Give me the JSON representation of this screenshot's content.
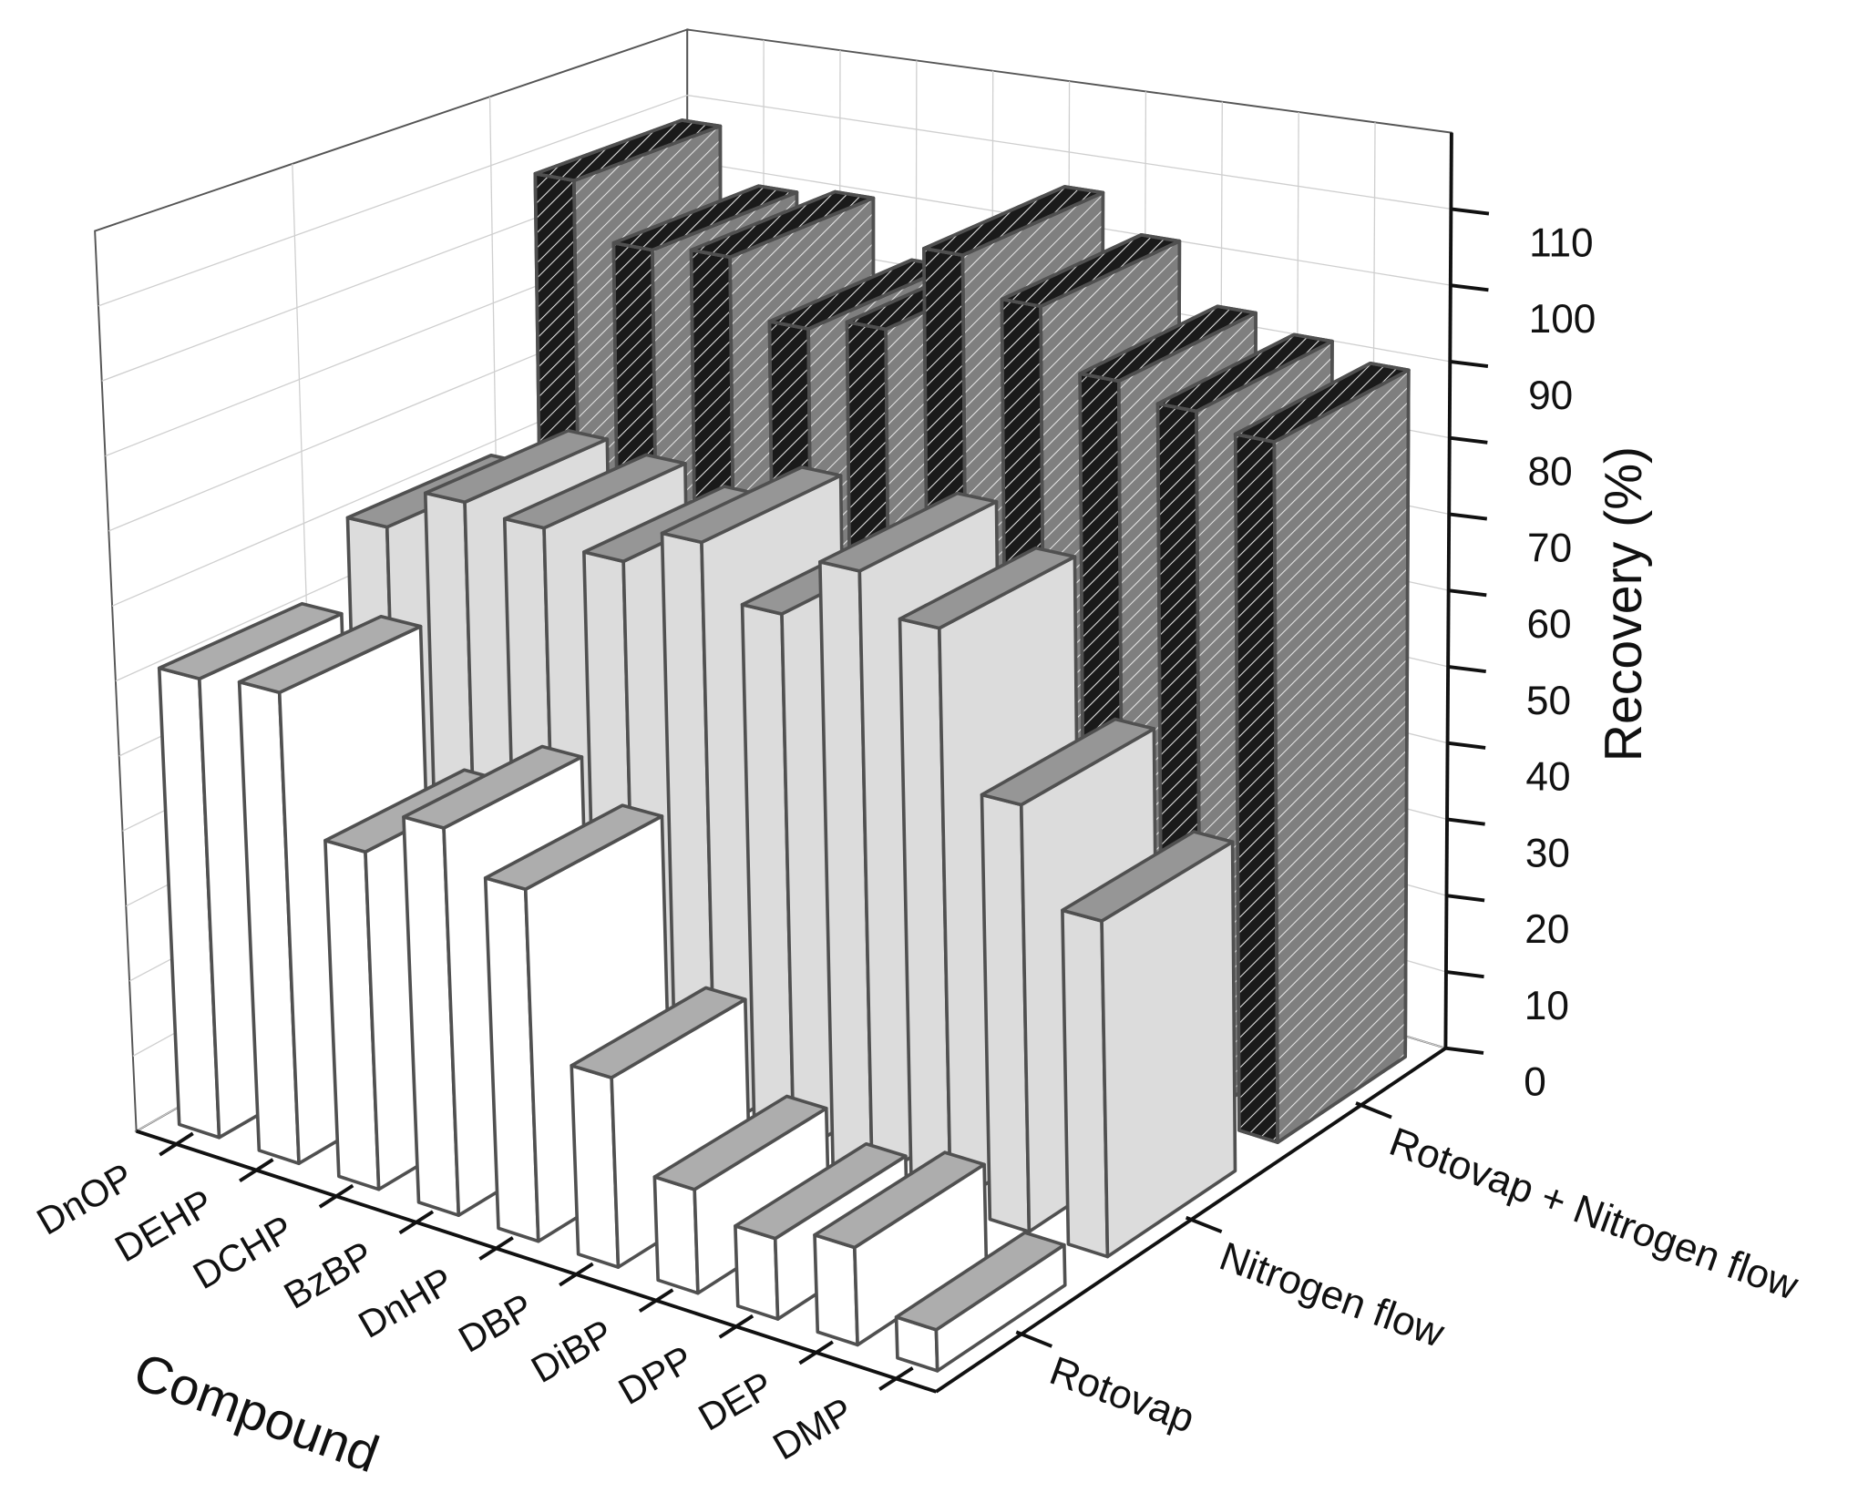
{
  "chart_data": {
    "type": "bar",
    "xlabel": "Compound",
    "ylabel": "Recovery (%)",
    "categories": [
      "DnOP",
      "DEHP",
      "DCHP",
      "BzBP",
      "DnHP",
      "DBP",
      "DiBP",
      "DPP",
      "DEP",
      "DMP"
    ],
    "series": [
      {
        "name": "Rotovap",
        "color": "#ffffff",
        "values": [
          61,
          62,
          44,
          50,
          45,
          24,
          13,
          10,
          12,
          5
        ]
      },
      {
        "name": "Nitrogen flow",
        "color": "#dcdcdc",
        "values": [
          70,
          76,
          75,
          73,
          78,
          71,
          79,
          74,
          54,
          42
        ]
      },
      {
        "name": "Rotovap + Nitrogen flow",
        "color": "#7f7f7f",
        "hatch": true,
        "values": [
          108,
          100,
          101,
          93,
          95,
          107,
          102,
          94,
          92,
          90
        ]
      }
    ],
    "ylim": [
      0,
      120
    ],
    "yticks": [
      0,
      10,
      20,
      30,
      40,
      50,
      60,
      70,
      80,
      90,
      100,
      110
    ],
    "grid": true
  }
}
